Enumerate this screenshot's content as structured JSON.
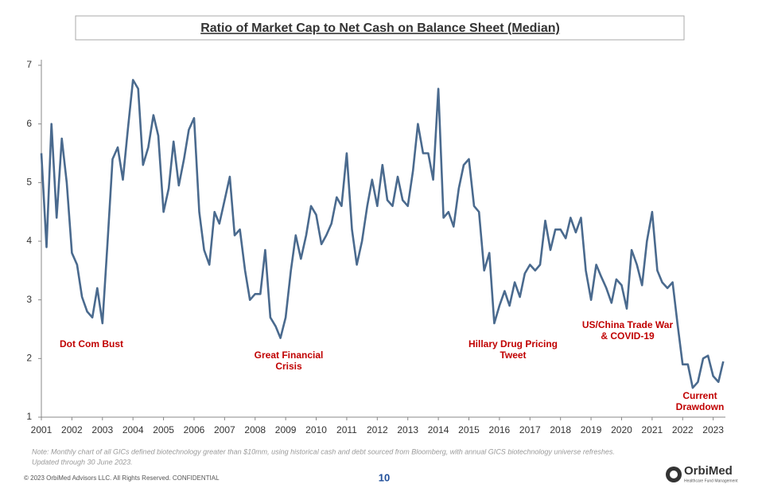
{
  "chart_data": {
    "type": "line",
    "title": "Ratio of Market Cap to Net Cash on Balance Sheet (Median)",
    "x": [
      2001,
      2001.17,
      2001.33,
      2001.5,
      2001.67,
      2001.83,
      2002,
      2002.17,
      2002.33,
      2002.5,
      2002.67,
      2002.83,
      2003,
      2003.17,
      2003.33,
      2003.5,
      2003.67,
      2003.83,
      2004,
      2004.17,
      2004.33,
      2004.5,
      2004.67,
      2004.83,
      2005,
      2005.17,
      2005.33,
      2005.5,
      2005.67,
      2005.83,
      2006,
      2006.17,
      2006.33,
      2006.5,
      2006.67,
      2006.83,
      2007,
      2007.17,
      2007.33,
      2007.5,
      2007.67,
      2007.83,
      2008,
      2008.17,
      2008.33,
      2008.5,
      2008.67,
      2008.83,
      2009,
      2009.17,
      2009.33,
      2009.5,
      2009.67,
      2009.83,
      2010,
      2010.17,
      2010.33,
      2010.5,
      2010.67,
      2010.83,
      2011,
      2011.17,
      2011.33,
      2011.5,
      2011.67,
      2011.83,
      2012,
      2012.17,
      2012.33,
      2012.5,
      2012.67,
      2012.83,
      2013,
      2013.17,
      2013.33,
      2013.5,
      2013.67,
      2013.83,
      2014,
      2014.17,
      2014.33,
      2014.5,
      2014.67,
      2014.83,
      2015,
      2015.17,
      2015.33,
      2015.5,
      2015.67,
      2015.83,
      2016,
      2016.17,
      2016.33,
      2016.5,
      2016.67,
      2016.83,
      2017,
      2017.17,
      2017.33,
      2017.5,
      2017.67,
      2017.83,
      2018,
      2018.17,
      2018.33,
      2018.5,
      2018.67,
      2018.83,
      2019,
      2019.17,
      2019.33,
      2019.5,
      2019.67,
      2019.83,
      2020,
      2020.17,
      2020.33,
      2020.5,
      2020.67,
      2020.83,
      2021,
      2021.17,
      2021.33,
      2021.5,
      2021.67,
      2021.83,
      2022,
      2022.17,
      2022.33,
      2022.5,
      2022.67,
      2022.83,
      2023,
      2023.17,
      2023.33
    ],
    "values": [
      5.5,
      3.9,
      6.0,
      4.4,
      5.75,
      5.0,
      3.8,
      3.6,
      3.05,
      2.8,
      2.7,
      3.2,
      2.6,
      4.0,
      5.4,
      5.6,
      5.05,
      5.9,
      6.75,
      6.6,
      5.3,
      5.6,
      6.15,
      5.8,
      4.5,
      4.9,
      5.7,
      4.95,
      5.4,
      5.9,
      6.1,
      4.5,
      3.85,
      3.6,
      4.5,
      4.3,
      4.7,
      5.1,
      4.1,
      4.2,
      3.5,
      3.0,
      3.1,
      3.1,
      3.85,
      2.7,
      2.55,
      2.35,
      2.7,
      3.5,
      4.1,
      3.7,
      4.1,
      4.6,
      4.45,
      3.95,
      4.1,
      4.3,
      4.75,
      4.6,
      5.5,
      4.2,
      3.6,
      4.0,
      4.6,
      5.05,
      4.6,
      5.3,
      4.7,
      4.6,
      5.1,
      4.7,
      4.6,
      5.2,
      6.0,
      5.5,
      5.5,
      5.05,
      6.6,
      4.4,
      4.5,
      4.25,
      4.9,
      5.3,
      5.4,
      4.6,
      4.5,
      3.5,
      3.8,
      2.6,
      2.9,
      3.15,
      2.9,
      3.3,
      3.05,
      3.45,
      3.6,
      3.5,
      3.6,
      4.35,
      3.85,
      4.2,
      4.2,
      4.05,
      4.4,
      4.15,
      4.4,
      3.5,
      3.0,
      3.6,
      3.4,
      3.2,
      2.95,
      3.35,
      3.25,
      2.85,
      3.85,
      3.6,
      3.25,
      4.0,
      4.5,
      3.5,
      3.3,
      3.2,
      3.3,
      2.6,
      1.9,
      1.9,
      1.5,
      1.6,
      2.0,
      2.05,
      1.7,
      1.6,
      1.95
    ],
    "color": "#4a6a8e",
    "xlim": [
      2001,
      2023.4
    ],
    "xticks": [
      2001,
      2002,
      2003,
      2004,
      2005,
      2006,
      2007,
      2008,
      2009,
      2010,
      2011,
      2012,
      2013,
      2014,
      2015,
      2016,
      2017,
      2018,
      2019,
      2020,
      2021,
      2022,
      2023
    ],
    "ylim": [
      1,
      7
    ],
    "yticks": [
      1,
      2,
      3,
      4,
      5,
      6,
      7
    ],
    "grid": false,
    "annotation_color": "#c00000",
    "annotations": [
      [
        "Dot Com Bust"
      ],
      [
        "Great Financial",
        "Crisis"
      ],
      [
        "Hillary Drug Pricing",
        "Tweet"
      ],
      [
        "US/China Trade War",
        "& COVID-19"
      ],
      [
        "Current",
        "Drawdown"
      ]
    ]
  },
  "note": [
    "Note: Monthly chart of all GICs defined biotechnology greater than $10mm, using historical cash and debt sourced from Bloomberg, with annual GICS biotechnology universe refreshes.",
    "Updated through 30 June 2023."
  ],
  "footer": {
    "copyright": "© 2023 OrbiMed Advisors LLC. All Rights Reserved. CONFIDENTIAL",
    "page": "10",
    "logo": "OrbiMed",
    "logo_tagline": "Healthcare Fund Management"
  }
}
